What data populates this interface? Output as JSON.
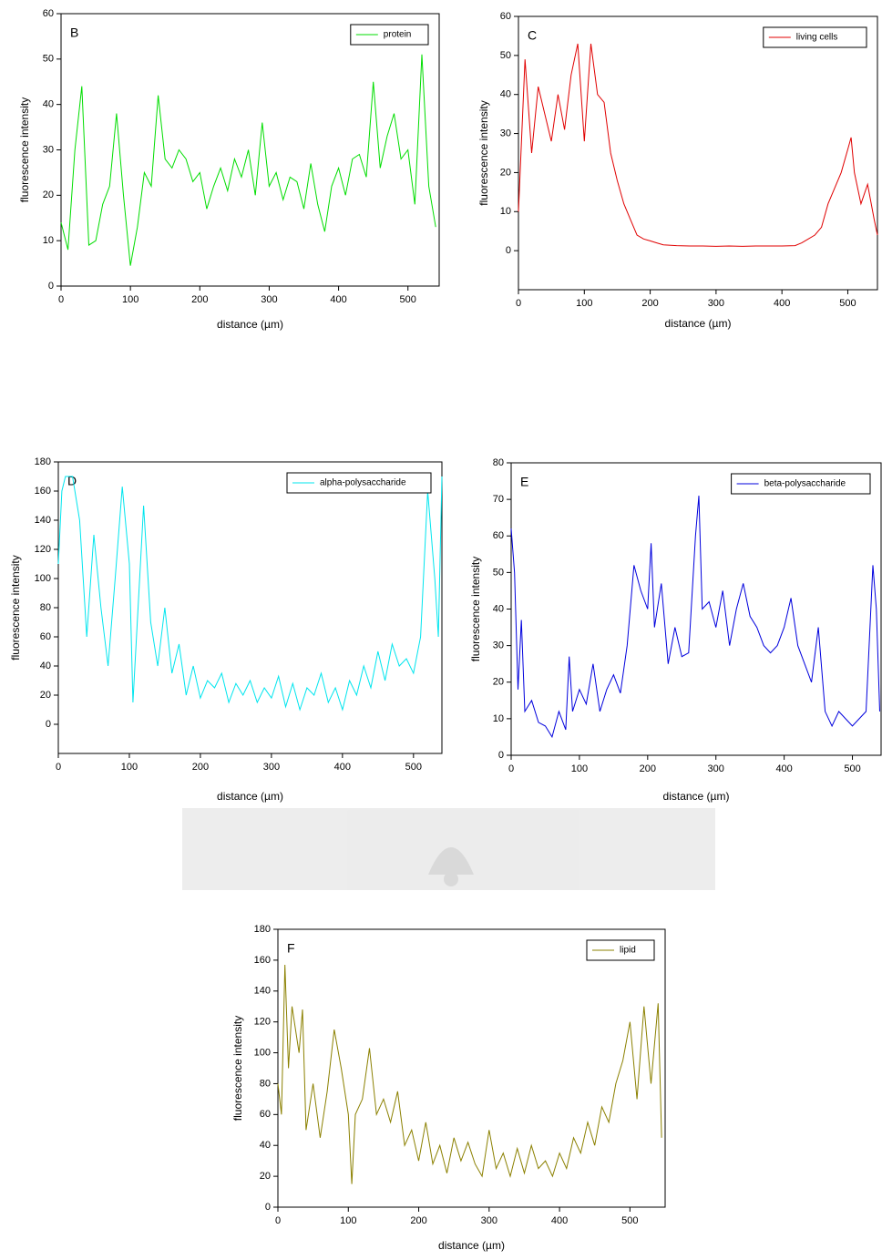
{
  "chart_data": [
    {
      "type": "line",
      "annotation": "B",
      "xlabel": "distance (µm)",
      "ylabel": "fluorescence intensity",
      "x": [
        0,
        10,
        20,
        30,
        40,
        50,
        60,
        70,
        80,
        90,
        100,
        110,
        120,
        130,
        140,
        150,
        160,
        170,
        180,
        190,
        200,
        210,
        220,
        230,
        240,
        250,
        260,
        270,
        280,
        290,
        300,
        310,
        320,
        330,
        340,
        350,
        360,
        370,
        380,
        390,
        400,
        410,
        420,
        430,
        440,
        450,
        460,
        470,
        480,
        490,
        500,
        510,
        520,
        530,
        540
      ],
      "series": [
        {
          "name": "protein",
          "color": "#00dd00",
          "values": [
            14,
            8,
            30,
            44,
            9,
            10,
            18,
            22,
            38,
            20,
            4.5,
            13,
            25,
            22,
            42,
            28,
            26,
            30,
            28,
            23,
            25,
            17,
            22,
            26,
            21,
            28,
            24,
            30,
            20,
            36,
            22,
            25,
            19,
            24,
            23,
            17,
            27,
            18,
            12,
            22,
            26,
            20,
            28,
            29,
            24,
            45,
            26,
            33,
            38,
            28,
            30,
            18,
            51,
            22,
            13
          ]
        }
      ],
      "xlim": [
        0,
        545
      ],
      "ylim": [
        0,
        60
      ],
      "xticks": [
        0,
        100,
        200,
        300,
        400,
        500
      ],
      "yticks": [
        0,
        10,
        20,
        30,
        40,
        50,
        60
      ]
    },
    {
      "type": "line",
      "annotation": "C",
      "xlabel": "distance (µm)",
      "ylabel": "fluorescence intensity",
      "x": [
        0,
        10,
        20,
        30,
        40,
        50,
        60,
        70,
        80,
        90,
        100,
        110,
        120,
        130,
        140,
        150,
        160,
        170,
        180,
        190,
        200,
        210,
        220,
        240,
        260,
        280,
        300,
        320,
        340,
        360,
        380,
        400,
        420,
        430,
        440,
        450,
        460,
        470,
        480,
        490,
        500,
        505,
        510,
        520,
        530,
        540,
        545
      ],
      "series": [
        {
          "name": "living cells",
          "color": "#e00000",
          "values": [
            10,
            49,
            25,
            42,
            35,
            28,
            40,
            31,
            45,
            53,
            28,
            53,
            40,
            38,
            25,
            18,
            12,
            8,
            4,
            3,
            2.5,
            2,
            1.5,
            1.3,
            1.2,
            1.2,
            1.1,
            1.2,
            1.1,
            1.2,
            1.2,
            1.2,
            1.3,
            2,
            3,
            4,
            6,
            12,
            16,
            20,
            26,
            29,
            20,
            12,
            17,
            8,
            4
          ]
        }
      ],
      "xlim": [
        0,
        545
      ],
      "ylim": [
        -10,
        60
      ],
      "xticks": [
        0,
        100,
        200,
        300,
        400,
        500
      ],
      "yticks": [
        0,
        10,
        20,
        30,
        40,
        50,
        60
      ]
    },
    {
      "type": "line",
      "annotation": "D",
      "xlabel": "distance (µm)",
      "ylabel": "fluorescence intensity",
      "x": [
        0,
        5,
        10,
        20,
        30,
        40,
        50,
        60,
        70,
        80,
        90,
        100,
        105,
        110,
        120,
        130,
        140,
        150,
        160,
        170,
        180,
        190,
        200,
        210,
        220,
        230,
        240,
        250,
        260,
        270,
        280,
        290,
        300,
        310,
        320,
        330,
        340,
        350,
        360,
        370,
        380,
        390,
        400,
        410,
        420,
        430,
        440,
        450,
        460,
        470,
        480,
        490,
        500,
        510,
        520,
        530,
        535,
        540
      ],
      "series": [
        {
          "name": "alpha-polysaccharide",
          "color": "#00e5ee",
          "values": [
            110,
            160,
            170,
            170,
            140,
            60,
            130,
            80,
            40,
            100,
            163,
            110,
            15,
            60,
            150,
            70,
            40,
            80,
            35,
            55,
            20,
            40,
            18,
            30,
            25,
            35,
            15,
            28,
            20,
            30,
            15,
            25,
            18,
            33,
            12,
            28,
            10,
            25,
            20,
            35,
            15,
            25,
            10,
            30,
            20,
            40,
            25,
            50,
            30,
            55,
            40,
            45,
            35,
            60,
            160,
            100,
            60,
            170
          ]
        }
      ],
      "xlim": [
        0,
        540
      ],
      "ylim": [
        -20,
        180
      ],
      "xticks": [
        0,
        100,
        200,
        300,
        400,
        500
      ],
      "yticks": [
        0,
        20,
        40,
        60,
        80,
        100,
        120,
        140,
        160,
        180
      ]
    },
    {
      "type": "line",
      "annotation": "E",
      "xlabel": "distance (µm)",
      "ylabel": "fluorescence intensity",
      "x": [
        0,
        5,
        10,
        15,
        20,
        30,
        40,
        50,
        60,
        70,
        80,
        85,
        90,
        100,
        110,
        120,
        130,
        140,
        150,
        160,
        170,
        180,
        190,
        200,
        205,
        210,
        220,
        230,
        240,
        250,
        260,
        270,
        275,
        280,
        290,
        300,
        310,
        320,
        330,
        340,
        350,
        360,
        370,
        380,
        390,
        400,
        410,
        420,
        430,
        440,
        450,
        460,
        470,
        480,
        490,
        500,
        510,
        520,
        530,
        535,
        540
      ],
      "series": [
        {
          "name": "beta-polysaccharide",
          "color": "#0000dd",
          "values": [
            62,
            50,
            18,
            37,
            12,
            15,
            9,
            8,
            5,
            12,
            7,
            27,
            12,
            18,
            14,
            25,
            12,
            18,
            22,
            17,
            30,
            52,
            45,
            40,
            58,
            35,
            47,
            25,
            35,
            27,
            28,
            60,
            71,
            40,
            42,
            35,
            45,
            30,
            40,
            47,
            38,
            35,
            30,
            28,
            30,
            35,
            43,
            30,
            25,
            20,
            35,
            12,
            8,
            12,
            10,
            8,
            10,
            12,
            52,
            40,
            12
          ]
        }
      ],
      "xlim": [
        0,
        542
      ],
      "ylim": [
        0,
        80
      ],
      "xticks": [
        0,
        100,
        200,
        300,
        400,
        500
      ],
      "yticks": [
        0,
        10,
        20,
        30,
        40,
        50,
        60,
        70,
        80
      ]
    },
    {
      "type": "line",
      "annotation": "F",
      "xlabel": "distance (µm)",
      "ylabel": "fluorescence intensity",
      "x": [
        0,
        5,
        10,
        15,
        20,
        30,
        35,
        40,
        50,
        60,
        70,
        80,
        90,
        100,
        105,
        110,
        120,
        130,
        140,
        150,
        160,
        170,
        180,
        190,
        200,
        210,
        220,
        230,
        240,
        250,
        260,
        270,
        280,
        290,
        300,
        310,
        320,
        330,
        340,
        350,
        360,
        370,
        380,
        390,
        400,
        410,
        420,
        430,
        440,
        450,
        460,
        470,
        480,
        490,
        500,
        510,
        520,
        530,
        540,
        545
      ],
      "series": [
        {
          "name": "lipid",
          "color": "#8b8000",
          "values": [
            80,
            60,
            157,
            90,
            130,
            100,
            128,
            50,
            80,
            45,
            75,
            115,
            90,
            60,
            15,
            60,
            70,
            103,
            60,
            70,
            55,
            75,
            40,
            50,
            30,
            55,
            28,
            40,
            22,
            45,
            30,
            42,
            28,
            20,
            50,
            25,
            35,
            20,
            38,
            22,
            40,
            25,
            30,
            20,
            35,
            25,
            45,
            35,
            55,
            40,
            65,
            55,
            80,
            95,
            120,
            70,
            130,
            80,
            132,
            45
          ]
        }
      ],
      "xlim": [
        0,
        550
      ],
      "ylim": [
        0,
        180
      ],
      "xticks": [
        0,
        100,
        200,
        300,
        400,
        500
      ],
      "yticks": [
        0,
        20,
        40,
        60,
        80,
        100,
        120,
        140,
        160,
        180
      ]
    }
  ]
}
